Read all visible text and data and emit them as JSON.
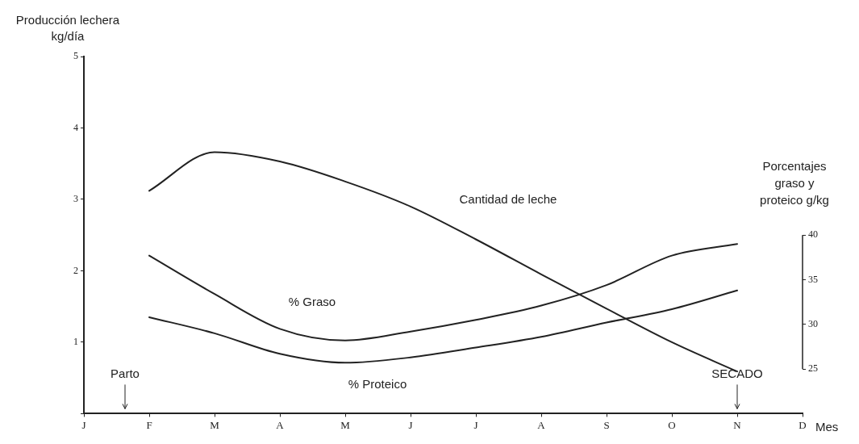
{
  "chart_data": {
    "type": "line",
    "xlabel": "Mes",
    "ylabel": "Producción lechera kg/día",
    "y2label": "Porcentajes graso y proteico g/kg",
    "categories": [
      "J",
      "F",
      "M",
      "A",
      "M",
      "J",
      "J",
      "A",
      "S",
      "O",
      "N",
      "D"
    ],
    "ylim": [
      0,
      5
    ],
    "yticks": [
      {
        "value": 0,
        "label": null
      },
      1,
      2,
      3,
      4,
      5
    ],
    "y2lim": [
      20,
      60
    ],
    "y2ticks": [
      25,
      30,
      35,
      40
    ],
    "grid": false,
    "legend": false,
    "marker": "none",
    "line_style": "solid",
    "series": [
      {
        "name": "Cantidad de leche",
        "color": "#222222",
        "values": [
          null,
          3.12,
          3.66,
          3.53,
          3.25,
          2.9,
          2.44,
          1.95,
          1.47,
          1.0,
          0.59,
          null
        ]
      },
      {
        "name": "% Graso",
        "color": "#222222",
        "axis": "y2",
        "values": [
          null,
          37.7,
          33.4,
          29.5,
          28.2,
          29.2,
          30.5,
          32.1,
          34.4,
          37.7,
          39.0,
          null
        ]
      },
      {
        "name": "% Proteico",
        "color": "#222222",
        "axis": "y2",
        "values": [
          null,
          30.8,
          29.0,
          26.7,
          25.7,
          26.3,
          27.4,
          28.6,
          30.2,
          31.7,
          33.8,
          null
        ]
      }
    ],
    "annotations": [
      "Parto",
      "SECADO"
    ]
  }
}
